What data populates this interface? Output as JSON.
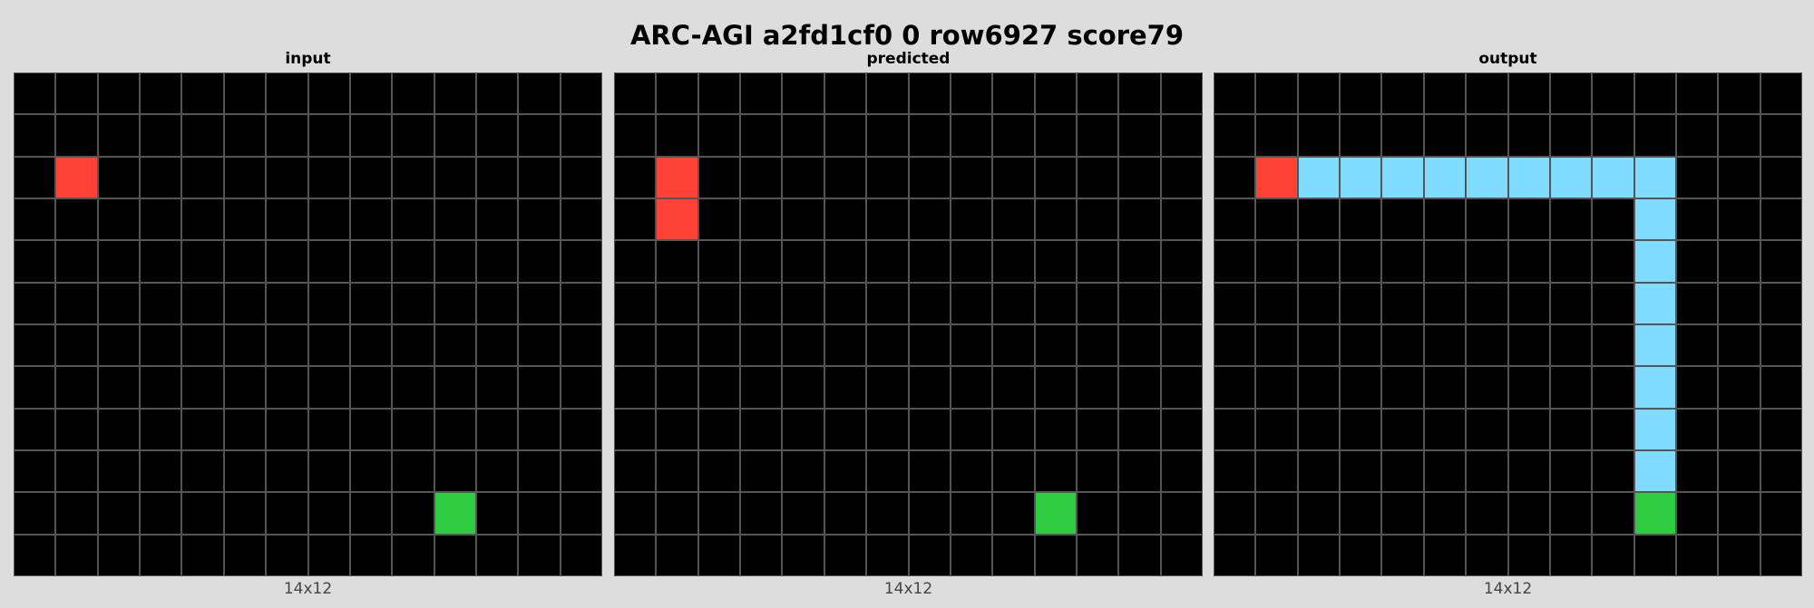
{
  "title": "ARC-AGI a2fd1cf0 0 row6927 score79",
  "palette": {
    "0": "#000000",
    "2": "#ff4136",
    "3": "#2ecc40",
    "8": "#7fdbff"
  },
  "panels": [
    {
      "label": "input",
      "dims": "14x12",
      "rows": [
        [
          0,
          0,
          0,
          0,
          0,
          0,
          0,
          0,
          0,
          0,
          0,
          0,
          0,
          0
        ],
        [
          0,
          0,
          0,
          0,
          0,
          0,
          0,
          0,
          0,
          0,
          0,
          0,
          0,
          0
        ],
        [
          0,
          2,
          0,
          0,
          0,
          0,
          0,
          0,
          0,
          0,
          0,
          0,
          0,
          0
        ],
        [
          0,
          0,
          0,
          0,
          0,
          0,
          0,
          0,
          0,
          0,
          0,
          0,
          0,
          0
        ],
        [
          0,
          0,
          0,
          0,
          0,
          0,
          0,
          0,
          0,
          0,
          0,
          0,
          0,
          0
        ],
        [
          0,
          0,
          0,
          0,
          0,
          0,
          0,
          0,
          0,
          0,
          0,
          0,
          0,
          0
        ],
        [
          0,
          0,
          0,
          0,
          0,
          0,
          0,
          0,
          0,
          0,
          0,
          0,
          0,
          0
        ],
        [
          0,
          0,
          0,
          0,
          0,
          0,
          0,
          0,
          0,
          0,
          0,
          0,
          0,
          0
        ],
        [
          0,
          0,
          0,
          0,
          0,
          0,
          0,
          0,
          0,
          0,
          0,
          0,
          0,
          0
        ],
        [
          0,
          0,
          0,
          0,
          0,
          0,
          0,
          0,
          0,
          0,
          0,
          0,
          0,
          0
        ],
        [
          0,
          0,
          0,
          0,
          0,
          0,
          0,
          0,
          0,
          0,
          3,
          0,
          0,
          0
        ],
        [
          0,
          0,
          0,
          0,
          0,
          0,
          0,
          0,
          0,
          0,
          0,
          0,
          0,
          0
        ]
      ]
    },
    {
      "label": "predicted",
      "dims": "14x12",
      "rows": [
        [
          0,
          0,
          0,
          0,
          0,
          0,
          0,
          0,
          0,
          0,
          0,
          0,
          0,
          0
        ],
        [
          0,
          0,
          0,
          0,
          0,
          0,
          0,
          0,
          0,
          0,
          0,
          0,
          0,
          0
        ],
        [
          0,
          2,
          0,
          0,
          0,
          0,
          0,
          0,
          0,
          0,
          0,
          0,
          0,
          0
        ],
        [
          0,
          2,
          0,
          0,
          0,
          0,
          0,
          0,
          0,
          0,
          0,
          0,
          0,
          0
        ],
        [
          0,
          0,
          0,
          0,
          0,
          0,
          0,
          0,
          0,
          0,
          0,
          0,
          0,
          0
        ],
        [
          0,
          0,
          0,
          0,
          0,
          0,
          0,
          0,
          0,
          0,
          0,
          0,
          0,
          0
        ],
        [
          0,
          0,
          0,
          0,
          0,
          0,
          0,
          0,
          0,
          0,
          0,
          0,
          0,
          0
        ],
        [
          0,
          0,
          0,
          0,
          0,
          0,
          0,
          0,
          0,
          0,
          0,
          0,
          0,
          0
        ],
        [
          0,
          0,
          0,
          0,
          0,
          0,
          0,
          0,
          0,
          0,
          0,
          0,
          0,
          0
        ],
        [
          0,
          0,
          0,
          0,
          0,
          0,
          0,
          0,
          0,
          0,
          0,
          0,
          0,
          0
        ],
        [
          0,
          0,
          0,
          0,
          0,
          0,
          0,
          0,
          0,
          0,
          3,
          0,
          0,
          0
        ],
        [
          0,
          0,
          0,
          0,
          0,
          0,
          0,
          0,
          0,
          0,
          0,
          0,
          0,
          0
        ]
      ]
    },
    {
      "label": "output",
      "dims": "14x12",
      "rows": [
        [
          0,
          0,
          0,
          0,
          0,
          0,
          0,
          0,
          0,
          0,
          0,
          0,
          0,
          0
        ],
        [
          0,
          0,
          0,
          0,
          0,
          0,
          0,
          0,
          0,
          0,
          0,
          0,
          0,
          0
        ],
        [
          0,
          2,
          8,
          8,
          8,
          8,
          8,
          8,
          8,
          8,
          8,
          0,
          0,
          0
        ],
        [
          0,
          0,
          0,
          0,
          0,
          0,
          0,
          0,
          0,
          0,
          8,
          0,
          0,
          0
        ],
        [
          0,
          0,
          0,
          0,
          0,
          0,
          0,
          0,
          0,
          0,
          8,
          0,
          0,
          0
        ],
        [
          0,
          0,
          0,
          0,
          0,
          0,
          0,
          0,
          0,
          0,
          8,
          0,
          0,
          0
        ],
        [
          0,
          0,
          0,
          0,
          0,
          0,
          0,
          0,
          0,
          0,
          8,
          0,
          0,
          0
        ],
        [
          0,
          0,
          0,
          0,
          0,
          0,
          0,
          0,
          0,
          0,
          8,
          0,
          0,
          0
        ],
        [
          0,
          0,
          0,
          0,
          0,
          0,
          0,
          0,
          0,
          0,
          8,
          0,
          0,
          0
        ],
        [
          0,
          0,
          0,
          0,
          0,
          0,
          0,
          0,
          0,
          0,
          8,
          0,
          0,
          0
        ],
        [
          0,
          0,
          0,
          0,
          0,
          0,
          0,
          0,
          0,
          0,
          3,
          0,
          0,
          0
        ],
        [
          0,
          0,
          0,
          0,
          0,
          0,
          0,
          0,
          0,
          0,
          0,
          0,
          0,
          0
        ]
      ]
    }
  ]
}
